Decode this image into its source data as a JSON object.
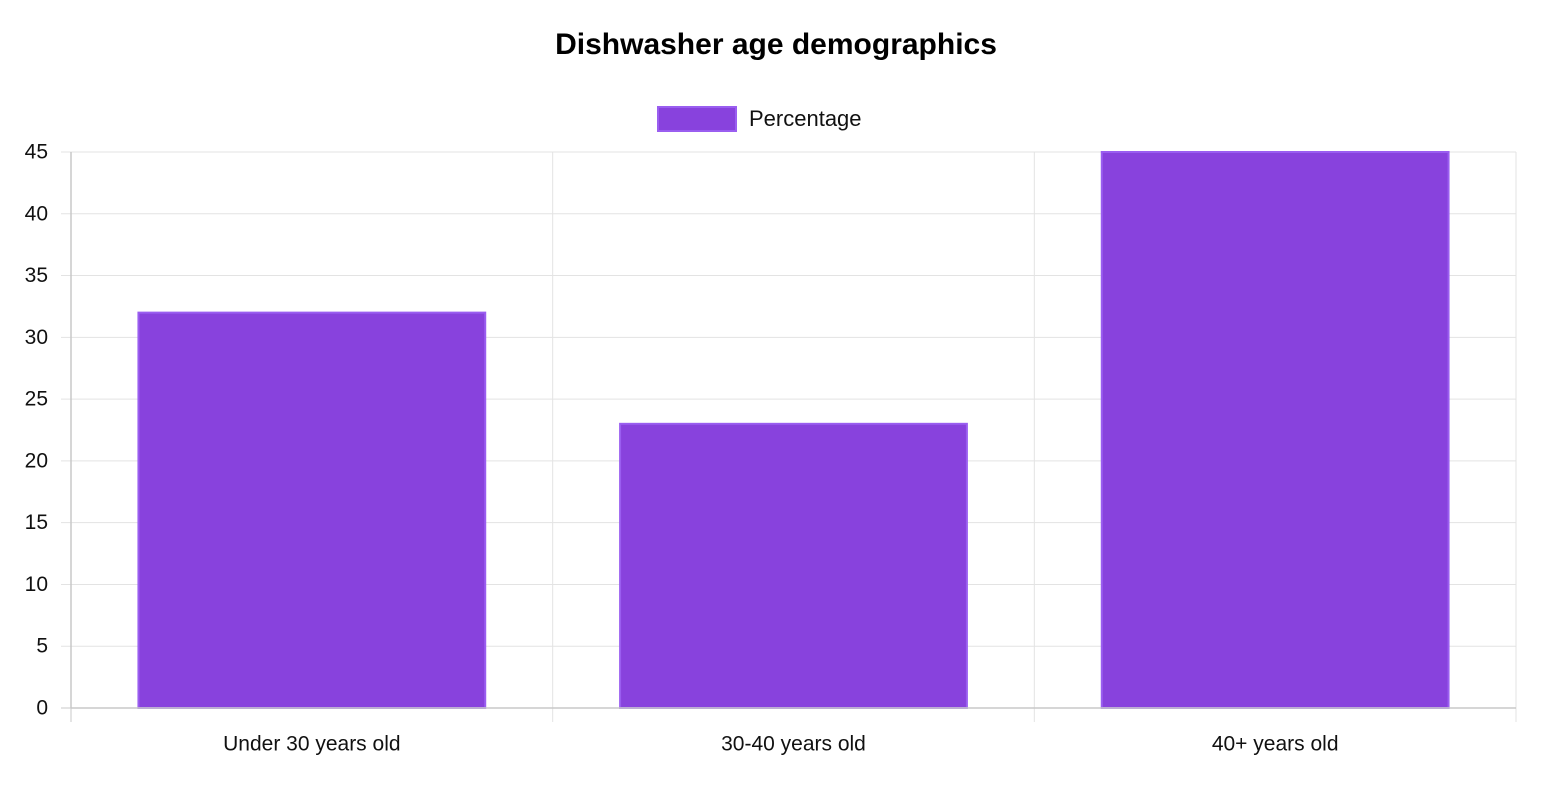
{
  "chart_data": {
    "type": "bar",
    "title": "Dishwasher age demographics",
    "categories": [
      "Under 30 years old",
      "30-40 years old",
      "40+ years old"
    ],
    "series": [
      {
        "name": "Percentage",
        "values": [
          32,
          23,
          45
        ]
      }
    ],
    "ylim": [
      0,
      45
    ],
    "yticks": [
      "0",
      "5",
      "10",
      "15",
      "20",
      "25",
      "30",
      "35",
      "40",
      "45"
    ],
    "xlabel": "",
    "ylabel": "",
    "grid": true,
    "legend_position": "top",
    "colors": {
      "bar_fill": "#8842dd",
      "bar_border": "#9a5ef0",
      "grid": "#e3e3e3",
      "axis": "#c8c8c8"
    }
  }
}
